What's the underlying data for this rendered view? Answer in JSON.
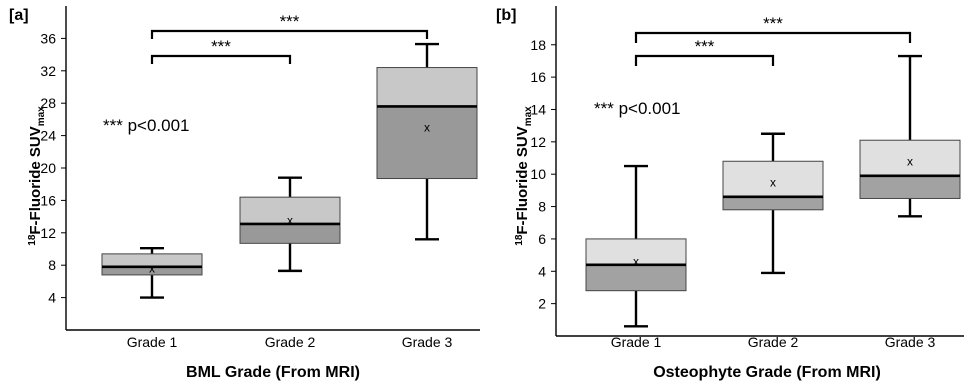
{
  "chart_data": [
    {
      "type": "box",
      "panel_label": "[a]",
      "xlabel": "BML Grade (From MRI)",
      "ylabel": {
        "prefix": "18",
        "main": "F-Fluoride SUV",
        "sub": "max"
      },
      "ylim": [
        0,
        40
      ],
      "yticks": [
        4,
        8,
        12,
        16,
        20,
        24,
        28,
        32,
        36
      ],
      "grid": false,
      "categories": [
        "Grade 1",
        "Grade 2",
        "Grade 3"
      ],
      "boxes": [
        {
          "min": 4.0,
          "q1": 6.8,
          "median": 7.8,
          "q3": 9.4,
          "max": 10.1,
          "mean": 7.6
        },
        {
          "min": 7.3,
          "q1": 10.7,
          "median": 13.1,
          "q3": 16.4,
          "max": 18.8,
          "mean": 13.5
        },
        {
          "min": 11.2,
          "q1": 18.7,
          "median": 27.6,
          "q3": 32.4,
          "max": 35.3,
          "mean": 25.0
        }
      ],
      "annotations": {
        "stat_text": "*** p<0.001",
        "mean_marker": "x"
      },
      "brackets": [
        {
          "from": "Grade 1",
          "to": "Grade 2",
          "label": "***"
        },
        {
          "from": "Grade 1",
          "to": "Grade 3",
          "label": "***"
        }
      ],
      "colors": {
        "upper": "#c8c8c8",
        "lower": "#999999"
      }
    },
    {
      "type": "box",
      "panel_label": "[b]",
      "xlabel": "Osteophyte Grade (From MRI)",
      "ylabel": {
        "prefix": "18",
        "main": "F-Fluoride SUV",
        "sub": "max"
      },
      "ylim": [
        0,
        20
      ],
      "yticks": [
        2,
        4,
        6,
        8,
        10,
        12,
        14,
        16,
        18
      ],
      "grid": false,
      "categories": [
        "Grade 1",
        "Grade 2",
        "Grade 3"
      ],
      "boxes": [
        {
          "min": 0.6,
          "q1": 2.8,
          "median": 4.4,
          "q3": 6.0,
          "max": 10.5,
          "mean": 4.6
        },
        {
          "min": 3.9,
          "q1": 7.8,
          "median": 8.6,
          "q3": 10.8,
          "max": 12.5,
          "mean": 9.5
        },
        {
          "min": 7.4,
          "q1": 8.5,
          "median": 9.9,
          "q3": 12.1,
          "max": 17.3,
          "mean": 10.8
        }
      ],
      "annotations": {
        "stat_text": "*** p<0.001",
        "mean_marker": "x"
      },
      "brackets": [
        {
          "from": "Grade 1",
          "to": "Grade 2",
          "label": "***"
        },
        {
          "from": "Grade 1",
          "to": "Grade 3",
          "label": "***"
        }
      ],
      "colors": {
        "upper": "#e0e0e0",
        "lower": "#a2a2a2"
      }
    }
  ]
}
